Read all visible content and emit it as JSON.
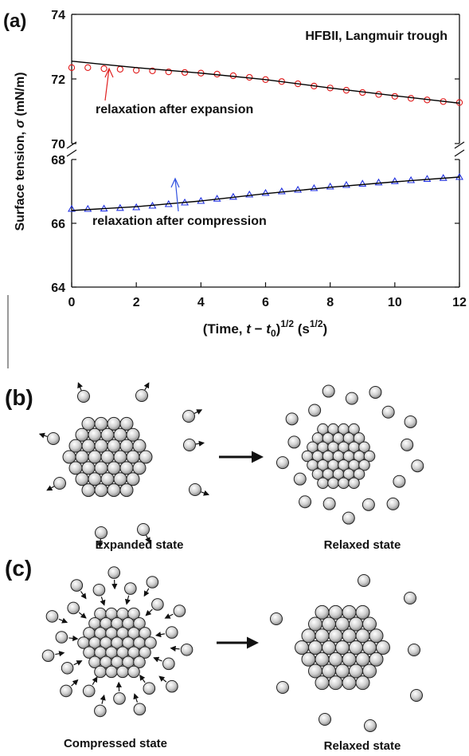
{
  "chart_data": [
    {
      "type": "scatter",
      "panel_label": "(a)",
      "title": "HFBII, Langmuir trough",
      "y_label": [
        "Surface tension, ",
        "σ",
        " (mN/m)"
      ],
      "annotation": "relaxation after expansion",
      "annotation_color": "#e02020",
      "xlim": [
        0,
        12
      ],
      "ylim": [
        70,
        74
      ],
      "yticks": [
        70,
        72,
        74
      ],
      "series": [
        {
          "style": "marker",
          "marker": "circle",
          "color": "#e01818",
          "x": [
            0,
            0.5,
            1,
            1.5,
            2,
            2.5,
            3,
            3.5,
            4,
            4.5,
            5,
            5.5,
            6,
            6.5,
            7,
            7.5,
            8,
            8.5,
            9,
            9.5,
            10,
            10.5,
            11,
            11.5,
            12
          ],
          "values": [
            72.35,
            72.35,
            72.32,
            72.3,
            72.27,
            72.25,
            72.22,
            72.2,
            72.18,
            72.15,
            72.1,
            72.05,
            71.98,
            71.92,
            71.85,
            71.78,
            71.72,
            71.65,
            71.58,
            71.52,
            71.46,
            71.4,
            71.35,
            71.3,
            71.27
          ]
        },
        {
          "style": "line",
          "color": "#000000",
          "x": [
            0,
            2,
            4,
            6,
            8,
            10,
            12
          ],
          "values": [
            72.55,
            72.35,
            72.18,
            71.98,
            71.72,
            71.48,
            71.25
          ]
        }
      ]
    },
    {
      "type": "scatter",
      "x_label": [
        "(Time, ",
        "t",
        " − ",
        "t",
        "0",
        ")",
        "1/2",
        " (s",
        "1/2",
        ")"
      ],
      "annotation": "relaxation after compression",
      "annotation_color": "#3050e0",
      "xlim": [
        0,
        12
      ],
      "xticks": [
        0,
        2,
        4,
        6,
        8,
        10,
        12
      ],
      "ylim": [
        64,
        68
      ],
      "yticks": [
        64,
        66,
        68
      ],
      "series": [
        {
          "style": "marker",
          "marker": "triangle",
          "color": "#2030e0",
          "x": [
            0,
            0.5,
            1,
            1.5,
            2,
            2.5,
            3,
            3.5,
            4,
            4.5,
            5,
            5.5,
            6,
            6.5,
            7,
            7.5,
            8,
            8.5,
            9,
            9.5,
            10,
            10.5,
            11,
            11.5,
            12
          ],
          "values": [
            66.45,
            66.45,
            66.46,
            66.48,
            66.5,
            66.55,
            66.6,
            66.65,
            66.7,
            66.77,
            66.83,
            66.9,
            66.95,
            67.0,
            67.05,
            67.1,
            67.15,
            67.2,
            67.24,
            67.28,
            67.32,
            67.35,
            67.39,
            67.42,
            67.45
          ]
        },
        {
          "style": "line",
          "color": "#000000",
          "x": [
            0,
            2,
            4,
            6,
            8,
            10,
            12
          ],
          "values": [
            66.4,
            66.52,
            66.7,
            66.93,
            67.13,
            67.3,
            67.45
          ]
        }
      ]
    }
  ],
  "panel_b": {
    "label": "(b)",
    "left_caption": "Expanded state",
    "right_caption": "Relaxed state"
  },
  "panel_c": {
    "label": "(c)",
    "left_caption": "Compressed state",
    "right_caption": "Relaxed state"
  }
}
